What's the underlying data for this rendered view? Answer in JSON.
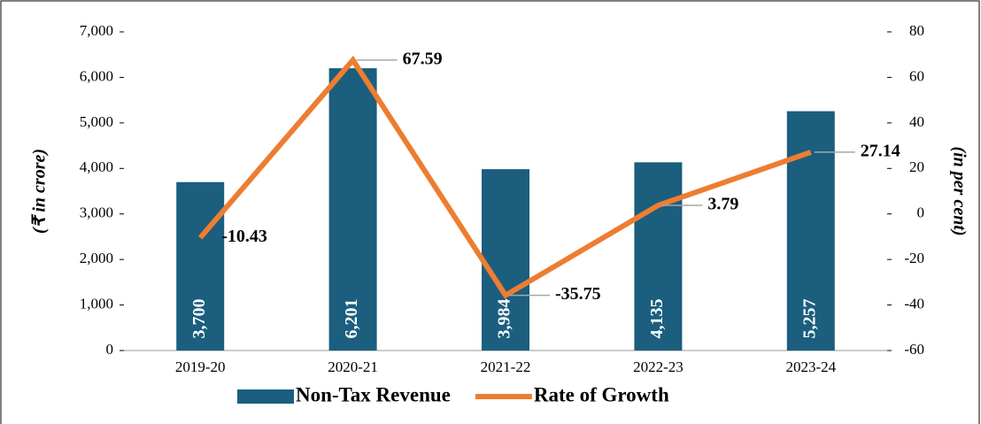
{
  "chart_data": {
    "type": "bar-line",
    "categories": [
      "2019-20",
      "2020-21",
      "2021-22",
      "2022-23",
      "2023-24"
    ],
    "series": [
      {
        "name": "Non-Tax Revenue",
        "type": "bar",
        "color": "#1b5e7e",
        "values": [
          3700,
          6201,
          3984,
          4135,
          5257
        ],
        "value_labels": [
          "3,700",
          "6,201",
          "3,984",
          "4,135",
          "5,257"
        ]
      },
      {
        "name": "Rate of Growth",
        "type": "line",
        "axis": "y2",
        "color": "#ed7d31",
        "values": [
          -10.43,
          67.59,
          -35.75,
          3.79,
          27.14
        ]
      }
    ],
    "ylabel": "(₹ in crore)",
    "y2label": "(in per cent)",
    "ylim": [
      0,
      7000
    ],
    "yticks": [
      0,
      {
        "value": 1000,
        "label": "1,000"
      },
      {
        "value": 2000,
        "label": "2,000"
      },
      {
        "value": 3000,
        "label": "3,000"
      },
      {
        "value": 4000,
        "label": "4,000"
      },
      {
        "value": 5000,
        "label": "5,000"
      },
      {
        "value": 6000,
        "label": "6,000"
      },
      {
        "value": 7000,
        "label": "7,000"
      }
    ],
    "y2lim": [
      -60,
      80
    ],
    "y2ticks": [
      -60,
      -40,
      -20,
      0,
      20,
      40,
      60,
      80
    ],
    "legend": "bottom"
  }
}
